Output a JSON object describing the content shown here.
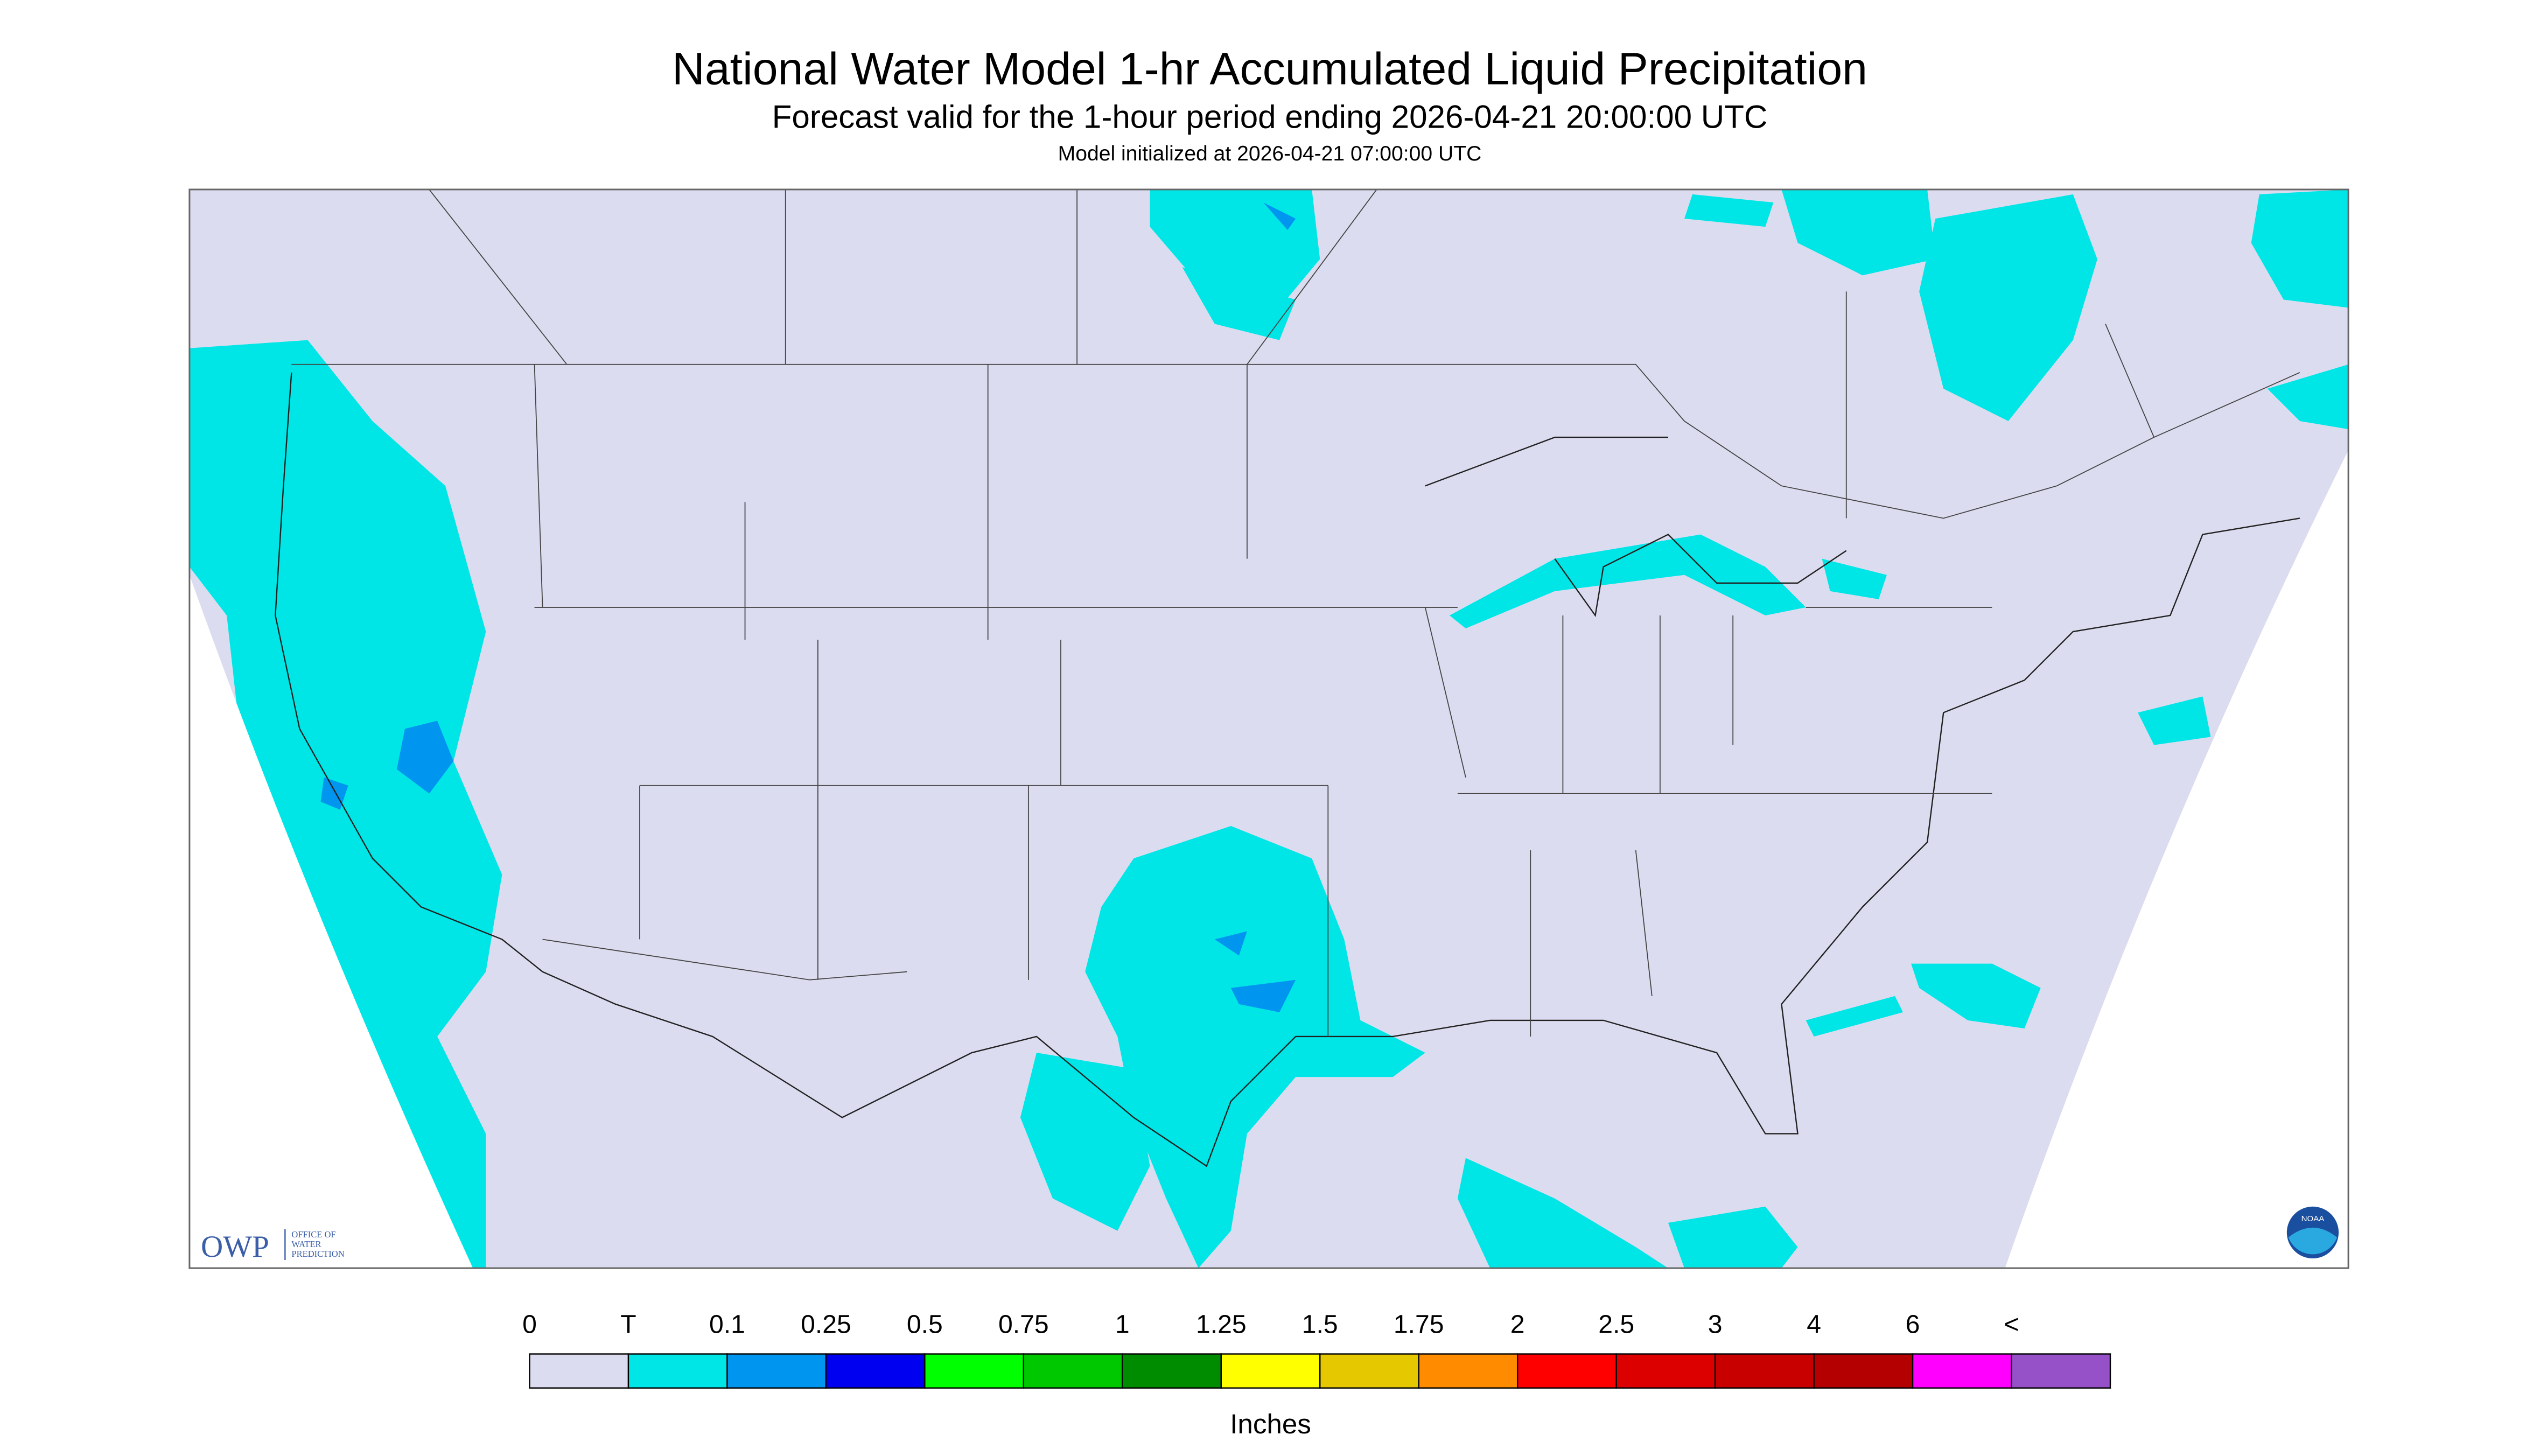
{
  "header": {
    "title": "National Water Model 1-hr Accumulated Liquid Precipitation",
    "subtitle": "Forecast valid for the 1-hour period ending 2026-04-21 20:00:00 UTC",
    "initialized": "Model initialized at 2026-04-21 07:00:00 UTC"
  },
  "legend": {
    "labels": [
      "0",
      "T",
      "0.1",
      "0.25",
      "0.5",
      "0.75",
      "1",
      "1.25",
      "1.5",
      "1.75",
      "2",
      "2.5",
      "3",
      "4",
      "6",
      "<"
    ],
    "colors": [
      "#dcdcf0",
      "#00e6e6",
      "#0096f0",
      "#0000f0",
      "#00ff00",
      "#00c800",
      "#008c00",
      "#ffff00",
      "#e6c800",
      "#ff8c00",
      "#ff0000",
      "#dc0000",
      "#c80000",
      "#b40000",
      "#ff00ff",
      "#9650c8"
    ],
    "unit": "Inches"
  },
  "logos": {
    "owp": "OWP",
    "owp_lines": [
      "OFFICE OF",
      "WATER",
      "PREDICTION"
    ],
    "noaa": "NOAA"
  }
}
